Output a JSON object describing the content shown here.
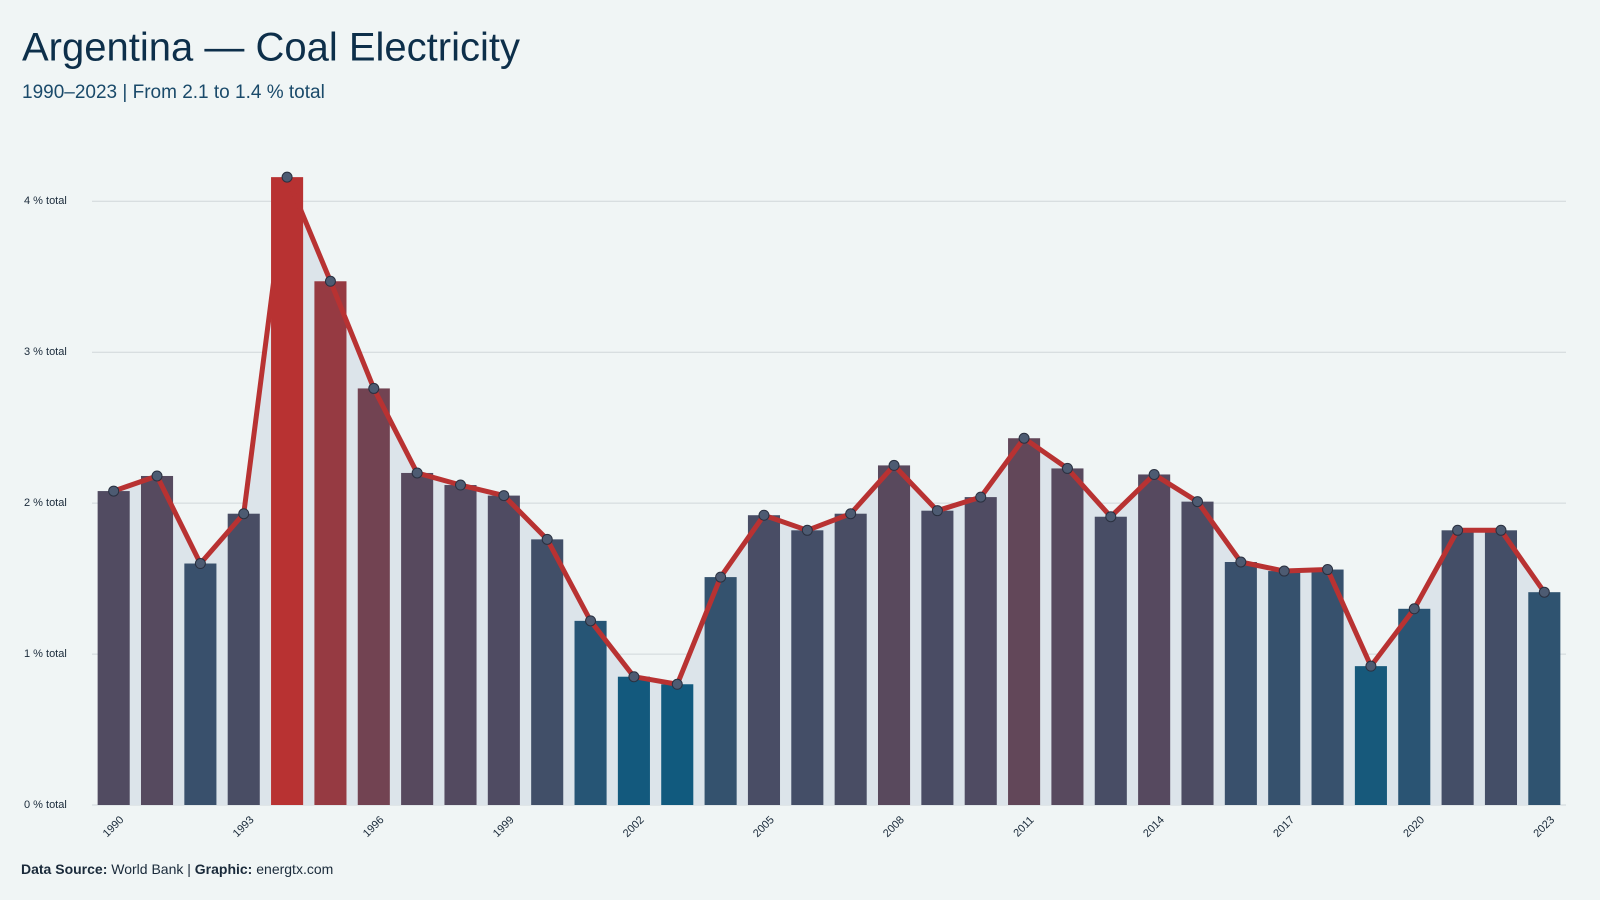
{
  "chart_data": {
    "type": "bar_line",
    "title": "Argentina — Coal Electricity",
    "subtitle": "1990–2023 | From 2.1 to 1.4 % total",
    "x": [
      1990,
      1991,
      1992,
      1993,
      1994,
      1995,
      1996,
      1997,
      1998,
      1999,
      2000,
      2001,
      2002,
      2003,
      2004,
      2005,
      2006,
      2007,
      2008,
      2009,
      2010,
      2011,
      2012,
      2013,
      2014,
      2015,
      2016,
      2017,
      2018,
      2019,
      2020,
      2021,
      2022,
      2023
    ],
    "values": [
      2.08,
      2.18,
      1.6,
      1.93,
      4.16,
      3.47,
      2.76,
      2.2,
      2.12,
      2.05,
      1.76,
      1.22,
      0.85,
      0.8,
      1.51,
      1.92,
      1.82,
      1.93,
      2.25,
      1.95,
      2.04,
      2.43,
      2.23,
      1.91,
      2.19,
      2.01,
      1.61,
      1.55,
      1.56,
      0.92,
      1.3,
      1.82,
      1.82,
      1.41
    ],
    "xlim": [
      1989.5,
      2023.5
    ],
    "xticks": [
      1990,
      1993,
      1996,
      1999,
      2002,
      2005,
      2008,
      2011,
      2014,
      2017,
      2020,
      2023
    ],
    "ylim": [
      0,
      4.3
    ],
    "yticks": [
      {
        "value": 0,
        "label": "0 % total"
      },
      {
        "value": 1,
        "label": "1 % total"
      },
      {
        "value": 2,
        "label": "2 % total"
      },
      {
        "value": 3,
        "label": "3 % total"
      },
      {
        "value": 4,
        "label": "4 % total"
      }
    ],
    "grid": true,
    "low_color": "#115a7e",
    "high_color": "#b83232",
    "line_color": "#b83232",
    "marker_color": "#4d5b72",
    "area_color": "#dce4ea",
    "footer": {
      "source_label": "Data Source:",
      "source": "World Bank",
      "separator": "|",
      "graphic_label": "Graphic:",
      "graphic": "energtx.com"
    }
  }
}
